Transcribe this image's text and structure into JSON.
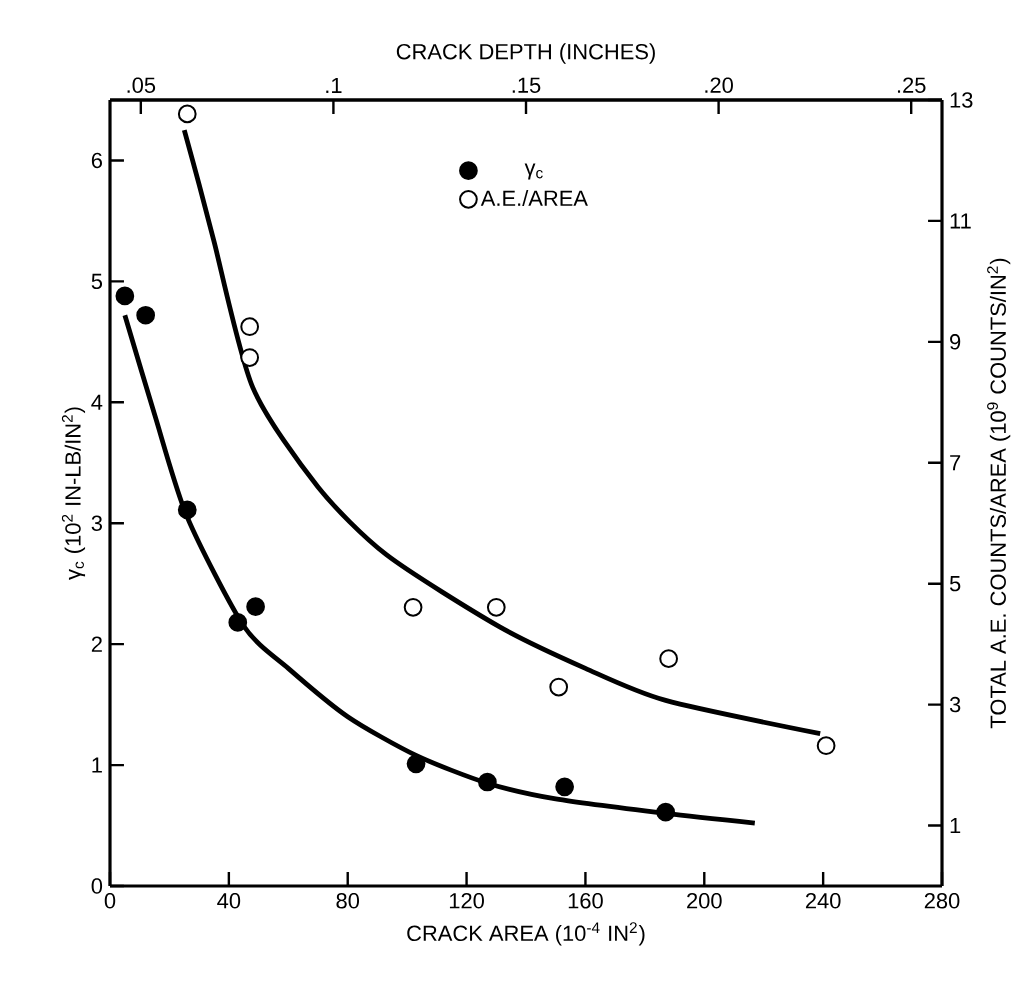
{
  "chart_data": {
    "type": "scatter",
    "legend": "top",
    "xlabel": "CRACK AREA (10$^{-4}$ IN$^{2}$)",
    "ylabel": "γ$_{c}$ (10$^{2}$ IN-LB/IN$^{2}$)",
    "y2label": "TOTAL A.E. COUNTS/AREA (10$^{9}$ COUNTS/IN$^{2}$)",
    "x2label": "CRACK DEPTH (INCHES)",
    "xlim": [
      0,
      280
    ],
    "xticks": [
      0,
      40,
      80,
      120,
      160,
      200,
      240,
      280
    ],
    "ylim": [
      0,
      6.5
    ],
    "yticks": [
      0,
      1,
      2,
      3,
      4,
      5,
      6
    ],
    "y2lim": [
      0,
      13
    ],
    "y2ticks": [
      1,
      3,
      5,
      7,
      9,
      11,
      13
    ],
    "x2lim": [
      0.042,
      0.258
    ],
    "x2ticks": [
      {
        "value": 0.05,
        "label": ".05"
      },
      {
        "value": 0.1,
        "label": ".1"
      },
      {
        "value": 0.15,
        "label": ".15"
      },
      {
        "value": 0.2,
        "label": ".20"
      },
      {
        "value": 0.25,
        "label": ".25"
      }
    ],
    "series": [
      {
        "name": "γ$_{c}$",
        "type": "scatter",
        "marker": "circle",
        "color": "#000000",
        "x": [
          5,
          12,
          26,
          43,
          49,
          103,
          127,
          153,
          187
        ],
        "values": [
          4.88,
          4.72,
          3.11,
          2.18,
          2.31,
          1.01,
          0.86,
          0.82,
          0.61
        ]
      },
      {
        "name": "A.E./AREA",
        "type": "scatter",
        "marker": "circle",
        "color": "#ffffff",
        "axis": "y2",
        "x": [
          26,
          47,
          47,
          102,
          130,
          151,
          188,
          241
        ],
        "values": [
          12.77,
          9.25,
          8.74,
          4.61,
          4.61,
          3.29,
          3.76,
          2.32
        ]
      },
      {
        "type": "line",
        "marker": "none",
        "color": "#000000",
        "x": [
          5,
          15,
          26,
          45,
          60,
          80,
          103,
          127,
          150,
          187,
          217
        ],
        "values": [
          4.72,
          3.9,
          3.05,
          2.15,
          1.8,
          1.4,
          1.08,
          0.85,
          0.72,
          0.6,
          0.52
        ]
      },
      {
        "type": "line",
        "marker": "none",
        "color": "#000000",
        "axis": "y2",
        "x": [
          25,
          30,
          35,
          48,
          70,
          93,
          131,
          160,
          187,
          239
        ],
        "values": [
          12.5,
          11.6,
          10.66,
          8.25,
          6.6,
          5.48,
          4.29,
          3.6,
          3.07,
          2.52
        ]
      }
    ]
  }
}
